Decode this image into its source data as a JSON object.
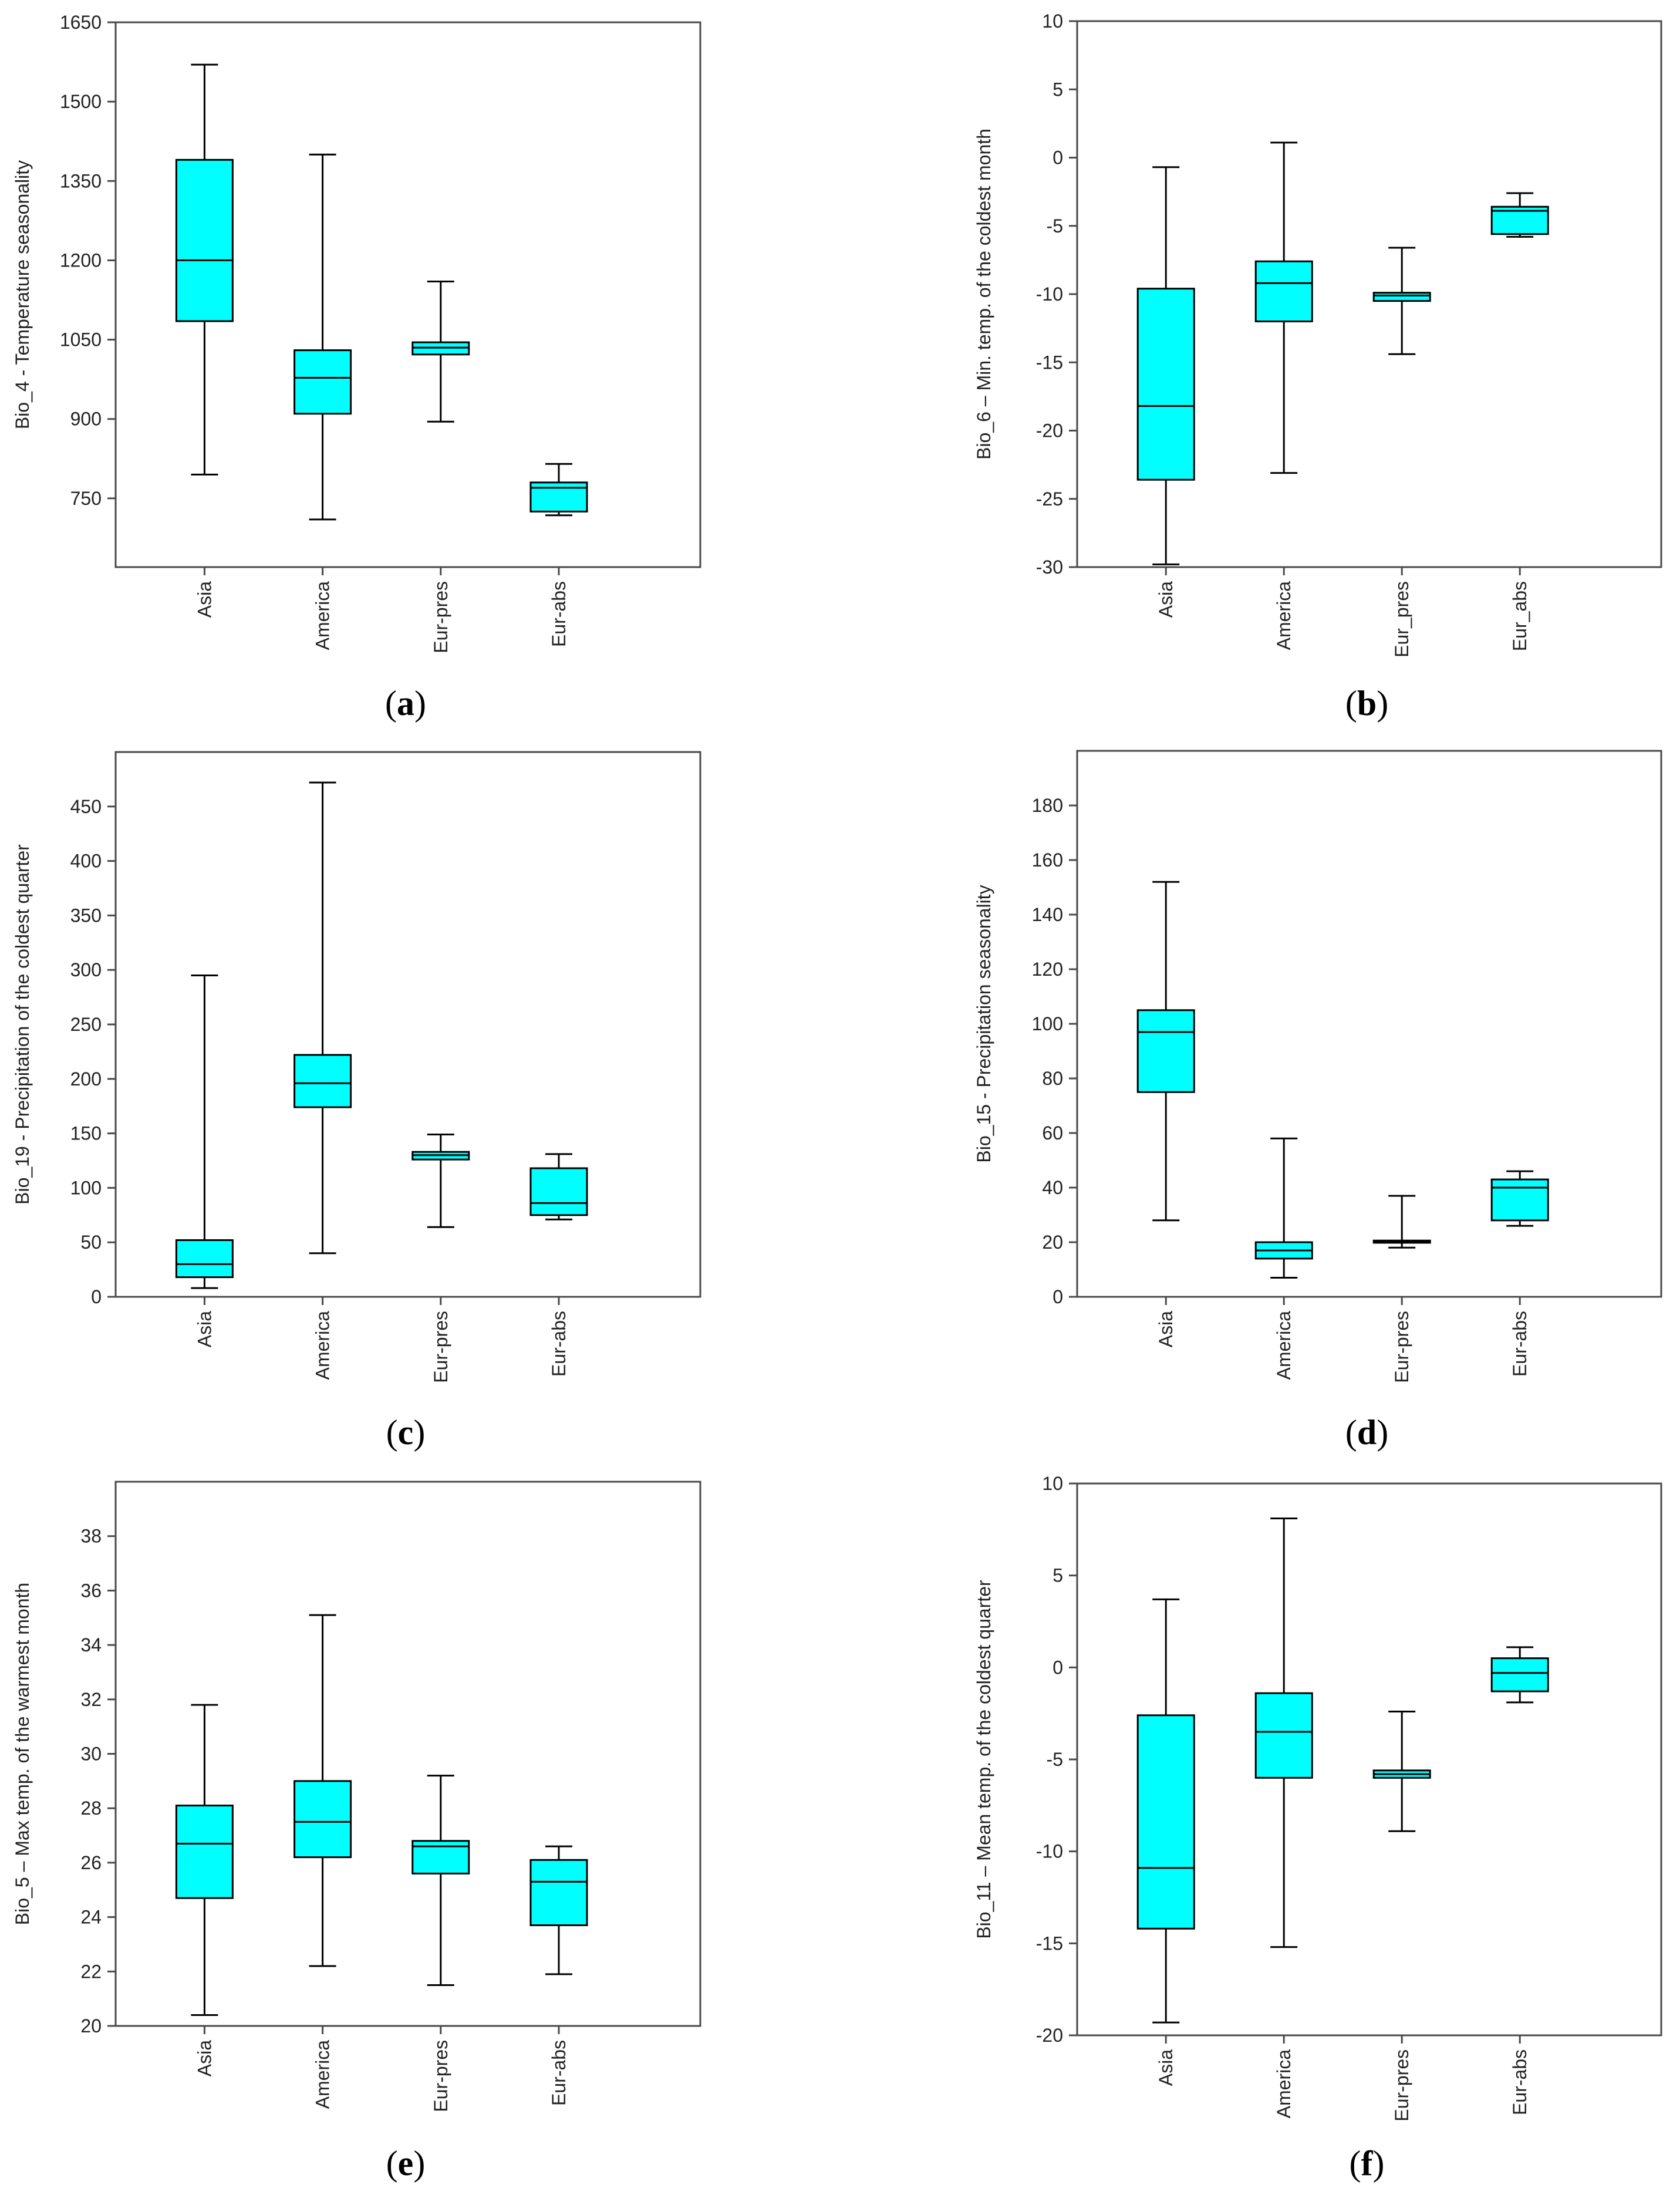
{
  "colors": {
    "box_fill": "#00FFFF",
    "line": "#000000",
    "frame": "#4A4A4A"
  },
  "chart_data": [
    {
      "type": "boxplot",
      "panel_label": "a",
      "ylabel": "Bio_4 - Temperature seasonality",
      "categories": [
        "Asia",
        "America",
        "Eur-pres",
        "Eur-abs"
      ],
      "ylim": [
        620,
        1650
      ],
      "yticks": [
        750,
        900,
        1050,
        1200,
        1350,
        1500,
        1650
      ],
      "boxes": [
        {
          "min": 795,
          "q1": 1085,
          "median": 1200,
          "q3": 1390,
          "max": 1570
        },
        {
          "min": 710,
          "q1": 910,
          "median": 978,
          "q3": 1030,
          "max": 1400
        },
        {
          "min": 895,
          "q1": 1022,
          "median": 1035,
          "q3": 1045,
          "max": 1160
        },
        {
          "min": 718,
          "q1": 725,
          "median": 770,
          "q3": 780,
          "max": 815
        }
      ]
    },
    {
      "type": "boxplot",
      "panel_label": "b",
      "ylabel": "Bio_6 – Min. temp. of the coldest month",
      "categories": [
        "Asia",
        "America",
        "Eur_pres",
        "Eur_abs"
      ],
      "ylim": [
        -30,
        10
      ],
      "yticks": [
        -30,
        -25,
        -20,
        -15,
        -10,
        -5,
        0,
        5,
        10
      ],
      "boxes": [
        {
          "min": -29.8,
          "q1": -23.6,
          "median": -18.2,
          "q3": -9.6,
          "max": -0.7
        },
        {
          "min": -23.1,
          "q1": -12.0,
          "median": -9.2,
          "q3": -7.6,
          "max": 1.1
        },
        {
          "min": -14.4,
          "q1": -10.5,
          "median": -10.1,
          "q3": -9.9,
          "max": -6.6
        },
        {
          "min": -5.8,
          "q1": -5.6,
          "median": -3.9,
          "q3": -3.6,
          "max": -2.6
        }
      ]
    },
    {
      "type": "boxplot",
      "panel_label": "c",
      "ylabel": "Bio_19 - Precipitation of the coldest quarter",
      "categories": [
        "Asia",
        "America",
        "Eur-pres",
        "Eur-abs"
      ],
      "ylim": [
        0,
        500
      ],
      "yticks": [
        0,
        50,
        100,
        150,
        200,
        250,
        300,
        350,
        400,
        450
      ],
      "boxes": [
        {
          "min": 8,
          "q1": 18,
          "median": 30,
          "q3": 52,
          "max": 295
        },
        {
          "min": 40,
          "q1": 174,
          "median": 196,
          "q3": 222,
          "max": 472
        },
        {
          "min": 64,
          "q1": 126,
          "median": 130,
          "q3": 133,
          "max": 149
        },
        {
          "min": 71,
          "q1": 75,
          "median": 86,
          "q3": 118,
          "max": 131
        }
      ]
    },
    {
      "type": "boxplot",
      "panel_label": "d",
      "ylabel": "Bio_15 - Precipitation seasonality",
      "categories": [
        "Asia",
        "America",
        "Eur-pres",
        "Eur-abs"
      ],
      "ylim": [
        0,
        200
      ],
      "yticks": [
        0,
        20,
        40,
        60,
        80,
        100,
        120,
        140,
        160,
        180
      ],
      "boxes": [
        {
          "min": 28,
          "q1": 75,
          "median": 97,
          "q3": 105,
          "max": 152
        },
        {
          "min": 7,
          "q1": 14,
          "median": 17,
          "q3": 20,
          "max": 58
        },
        {
          "min": 18,
          "q1": 19.8,
          "median": 20.3,
          "q3": 20.6,
          "max": 37
        },
        {
          "min": 26,
          "q1": 28,
          "median": 40,
          "q3": 43,
          "max": 46
        }
      ]
    },
    {
      "type": "boxplot",
      "panel_label": "e",
      "ylabel": "Bio_5 – Max temp. of the warmest month",
      "categories": [
        "Asia",
        "America",
        "Eur-pres",
        "Eur-abs"
      ],
      "ylim": [
        20,
        40
      ],
      "yticks": [
        20,
        22,
        24,
        26,
        28,
        30,
        32,
        34,
        36,
        38
      ],
      "boxes": [
        {
          "min": 20.4,
          "q1": 24.7,
          "median": 26.7,
          "q3": 28.1,
          "max": 31.8
        },
        {
          "min": 22.2,
          "q1": 26.2,
          "median": 27.5,
          "q3": 29.0,
          "max": 35.1
        },
        {
          "min": 21.5,
          "q1": 25.6,
          "median": 26.6,
          "q3": 26.8,
          "max": 29.2
        },
        {
          "min": 21.9,
          "q1": 23.7,
          "median": 25.3,
          "q3": 26.1,
          "max": 26.6
        }
      ]
    },
    {
      "type": "boxplot",
      "panel_label": "f",
      "ylabel": "Bio_11 – Mean temp. of the coldest quarter",
      "categories": [
        "Asia",
        "America",
        "Eur-pres",
        "Eur-abs"
      ],
      "ylim": [
        -20,
        10
      ],
      "yticks": [
        -20,
        -15,
        -10,
        -5,
        0,
        5,
        10
      ],
      "boxes": [
        {
          "min": -19.3,
          "q1": -14.2,
          "median": -10.9,
          "q3": -2.6,
          "max": 3.7
        },
        {
          "min": -15.2,
          "q1": -6.0,
          "median": -3.5,
          "q3": -1.4,
          "max": 8.1
        },
        {
          "min": -8.9,
          "q1": -6.0,
          "median": -5.8,
          "q3": -5.6,
          "max": -2.4
        },
        {
          "min": -1.9,
          "q1": -1.3,
          "median": -0.3,
          "q3": 0.5,
          "max": 1.1
        }
      ]
    }
  ]
}
